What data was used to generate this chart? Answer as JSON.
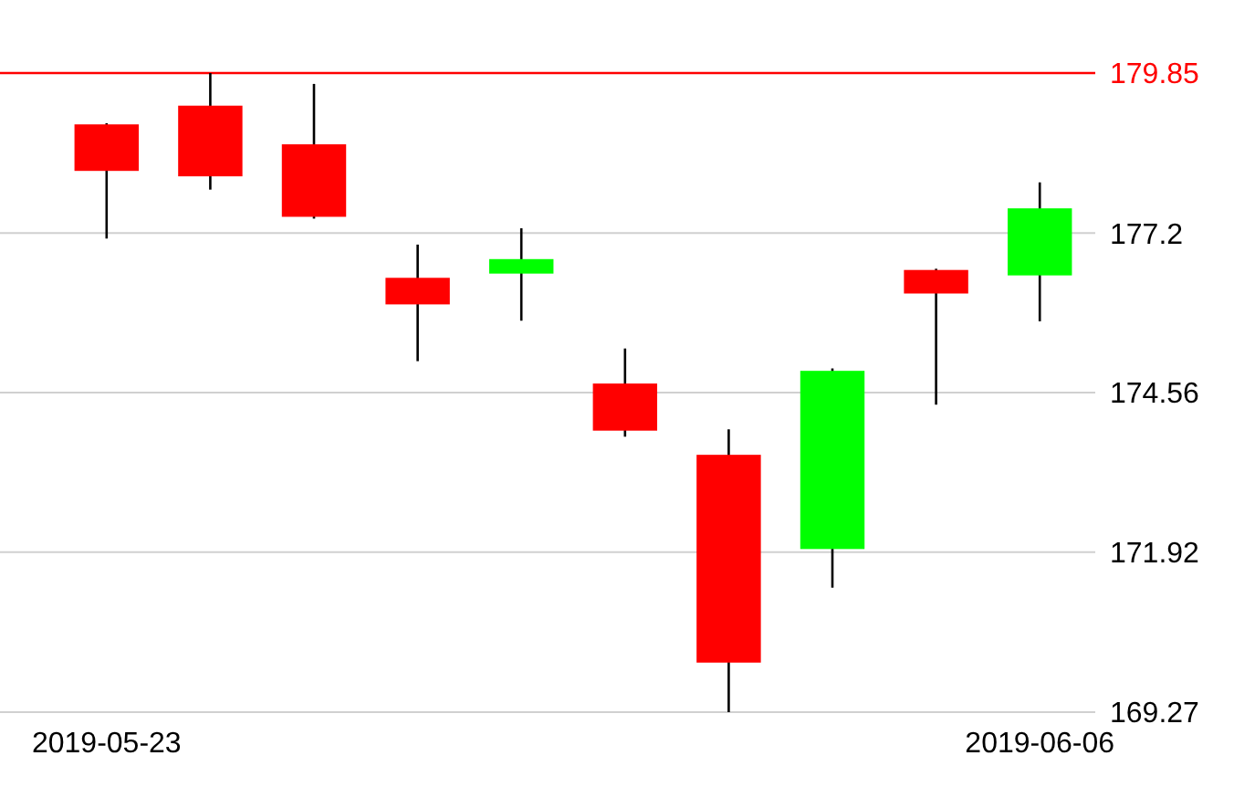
{
  "chart_data": {
    "type": "candlestick",
    "categories": [
      "2019-05-23",
      null,
      null,
      null,
      null,
      null,
      null,
      null,
      null,
      "2019-06-06"
    ],
    "ohlc": [
      [
        179.0,
        179.02,
        177.11,
        178.23
      ],
      [
        179.31,
        179.85,
        177.92,
        178.14
      ],
      [
        178.67,
        179.67,
        177.44,
        177.47
      ],
      [
        176.46,
        177.01,
        175.08,
        176.02
      ],
      [
        176.53,
        177.28,
        175.75,
        176.77
      ],
      [
        174.71,
        175.29,
        173.83,
        173.93
      ],
      [
        173.53,
        173.95,
        169.27,
        170.09
      ],
      [
        171.97,
        174.96,
        171.33,
        174.92
      ],
      [
        176.59,
        176.61,
        174.36,
        176.2
      ],
      [
        176.5,
        178.04,
        175.74,
        177.61
      ]
    ],
    "colors": [
      "#ff0000",
      "#ff0000",
      "#ff0000",
      "#ff0000",
      "#00ff00",
      "#ff0000",
      "#ff0000",
      "#00ff00",
      "#ff0000",
      "#00ff00"
    ],
    "ylim": [
      169.27,
      179.85
    ],
    "yticks": [
      177.2,
      174.56,
      171.92,
      169.27
    ],
    "grid": "y",
    "ref_lines": [
      {
        "axis": "y",
        "value": 179.85,
        "label": "179.85",
        "color": "#ff0000"
      }
    ]
  }
}
